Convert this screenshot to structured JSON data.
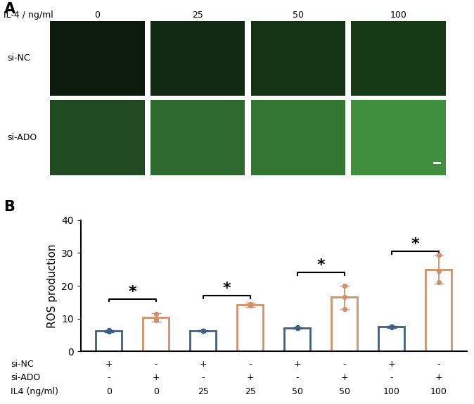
{
  "panel_a": {
    "label": "A",
    "header": "IL-4 / ng/ml",
    "columns": [
      "0",
      "25",
      "50",
      "100"
    ],
    "rows": [
      "si-NC",
      "si-ADO"
    ]
  },
  "chart_data": {
    "type": "bar",
    "panel_label": "B",
    "y_label": "ROS production",
    "categories": [
      null,
      null,
      null,
      null,
      null,
      null,
      null,
      null
    ],
    "values": [
      6.2,
      10.3,
      6.3,
      14.2,
      7.2,
      16.5,
      7.5,
      25.0
    ],
    "errors": [
      0.4,
      1.3,
      0.2,
      0.7,
      0.2,
      3.5,
      0.3,
      4.3
    ],
    "points": [
      [
        6.0,
        6.5,
        6.2
      ],
      [
        10.0,
        11.5,
        9.5
      ],
      [
        6.2,
        6.4,
        6.3
      ],
      [
        14.5,
        14.0,
        14.0
      ],
      [
        7.2,
        7.3,
        7.2
      ],
      [
        13.0,
        20.0,
        16.5
      ],
      [
        7.3,
        7.6,
        7.5
      ],
      [
        21.0,
        29.5,
        24.5
      ]
    ],
    "colors": [
      "#3f5f82",
      "#d4906a",
      "#3f5f82",
      "#d4906a",
      "#3f5f82",
      "#d4906a",
      "#3f5f82",
      "#d4906a"
    ],
    "marker": "o",
    "ylim": [
      0,
      40
    ],
    "yticks": [
      0,
      10,
      20,
      30,
      40
    ],
    "tick_labels": "y",
    "significance": [
      {
        "pair": [
          0,
          1
        ],
        "y": 16,
        "label": "*"
      },
      {
        "pair": [
          2,
          3
        ],
        "y": 17,
        "label": "*"
      },
      {
        "pair": [
          4,
          5
        ],
        "y": 24,
        "label": "*"
      },
      {
        "pair": [
          6,
          7
        ],
        "y": 30.5,
        "label": "*"
      }
    ],
    "x_table": [
      {
        "label": "si-NC",
        "values": [
          "+",
          "-",
          "+",
          "-",
          "+",
          "-",
          "+",
          "-"
        ]
      },
      {
        "label": "si-ADO",
        "values": [
          "-",
          "+",
          "-",
          "+",
          "-",
          "+",
          "-",
          "+"
        ]
      },
      {
        "label": "IL4 (ng/ml)",
        "values": [
          "0",
          "0",
          "25",
          "25",
          "50",
          "50",
          "100",
          "100"
        ]
      }
    ]
  }
}
